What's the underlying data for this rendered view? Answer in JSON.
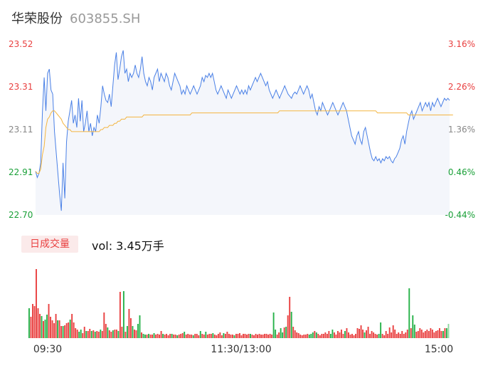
{
  "stock": {
    "name": "华荣股份",
    "code": "603855.SH"
  },
  "volume_panel": {
    "tag": "日成交量",
    "vol_label": "vol: 3.45万手"
  },
  "colors": {
    "price": "#4a80e6",
    "avg": "#f3b541",
    "up": "#e94040",
    "down": "#27b24a",
    "flat": "#8fd6a0",
    "axis_up": "#e94040",
    "axis_down": "#1aa038",
    "axis_mid": "#888888"
  },
  "chart_data": {
    "type": "line",
    "price_axis": {
      "ylim": [
        22.7,
        23.52
      ],
      "left_ticks": [
        "23.52",
        "23.31",
        "23.11",
        "22.91",
        "22.70"
      ],
      "right_ticks": [
        "3.16%",
        "2.26%",
        "1.36%",
        "0.46%",
        "-0.44%"
      ]
    },
    "x_axis": {
      "range": [
        0,
        240
      ],
      "ticks": [
        {
          "label": "09:30",
          "x": 0
        },
        {
          "label": "11:30/13:00",
          "x": 120
        },
        {
          "label": "15:00",
          "x": 240
        }
      ]
    },
    "series": [
      {
        "role": "price",
        "values": [
          22.91,
          22.88,
          22.9,
          22.95,
          23.2,
          23.36,
          23.2,
          23.38,
          23.4,
          23.3,
          23.28,
          23.1,
          23.0,
          22.9,
          22.8,
          22.72,
          22.95,
          22.78,
          23.05,
          23.15,
          23.2,
          23.25,
          23.14,
          23.18,
          23.12,
          23.26,
          23.15,
          23.25,
          23.1,
          23.14,
          23.2,
          23.1,
          23.14,
          23.08,
          23.12,
          23.1,
          23.18,
          23.14,
          23.22,
          23.32,
          23.28,
          23.25,
          23.24,
          23.28,
          23.22,
          23.32,
          23.42,
          23.48,
          23.35,
          23.4,
          23.46,
          23.49,
          23.38,
          23.4,
          23.34,
          23.38,
          23.36,
          23.38,
          23.42,
          23.38,
          23.36,
          23.4,
          23.46,
          23.38,
          23.34,
          23.32,
          23.36,
          23.34,
          23.3,
          23.36,
          23.38,
          23.4,
          23.34,
          23.38,
          23.36,
          23.34,
          23.38,
          23.36,
          23.32,
          23.3,
          23.34,
          23.38,
          23.36,
          23.34,
          23.32,
          23.28,
          23.3,
          23.28,
          23.32,
          23.3,
          23.28,
          23.3,
          23.32,
          23.3,
          23.28,
          23.3,
          23.32,
          23.36,
          23.34,
          23.37,
          23.36,
          23.38,
          23.36,
          23.38,
          23.34,
          23.3,
          23.28,
          23.3,
          23.32,
          23.3,
          23.28,
          23.26,
          23.3,
          23.28,
          23.26,
          23.28,
          23.3,
          23.32,
          23.3,
          23.28,
          23.3,
          23.28,
          23.3,
          23.28,
          23.32,
          23.3,
          23.32,
          23.34,
          23.36,
          23.34,
          23.36,
          23.38,
          23.36,
          23.34,
          23.32,
          23.34,
          23.3,
          23.28,
          23.26,
          23.28,
          23.3,
          23.28,
          23.26,
          23.28,
          23.3,
          23.32,
          23.3,
          23.28,
          23.27,
          23.26,
          23.28,
          23.29,
          23.28,
          23.3,
          23.32,
          23.3,
          23.28,
          23.3,
          23.32,
          23.3,
          23.26,
          23.28,
          23.24,
          23.2,
          23.18,
          23.22,
          23.2,
          23.24,
          23.22,
          23.2,
          23.18,
          23.2,
          23.22,
          23.24,
          23.22,
          23.2,
          23.18,
          23.2,
          23.22,
          23.24,
          23.22,
          23.2,
          23.16,
          23.12,
          23.08,
          23.06,
          23.04,
          23.08,
          23.1,
          23.06,
          23.04,
          23.1,
          23.12,
          23.08,
          23.04,
          23.0,
          22.97,
          22.96,
          22.98,
          22.96,
          22.97,
          22.95,
          22.97,
          22.96,
          22.98,
          22.97,
          22.98,
          22.96,
          22.95,
          22.97,
          22.98,
          23.0,
          23.02,
          23.06,
          23.08,
          23.04,
          23.1,
          23.14,
          23.18,
          23.2,
          23.16,
          23.18,
          23.2,
          23.22,
          23.24,
          23.2,
          23.22,
          23.24,
          23.22,
          23.24,
          23.2,
          23.24,
          23.22,
          23.24,
          23.26,
          23.24,
          23.22,
          23.24,
          23.26,
          23.25,
          23.26,
          23.25
        ]
      },
      {
        "role": "avg",
        "values": [
          22.91,
          22.9,
          22.9,
          22.92,
          22.99,
          23.03,
          23.12,
          23.16,
          23.17,
          23.19,
          23.2,
          23.2,
          23.19,
          23.18,
          23.17,
          23.16,
          23.14,
          23.13,
          23.12,
          23.11,
          23.11,
          23.1,
          23.1,
          23.1,
          23.1,
          23.1,
          23.1,
          23.1,
          23.1,
          23.1,
          23.1,
          23.1,
          23.1,
          23.1,
          23.1,
          23.1,
          23.1,
          23.1,
          23.11,
          23.11,
          23.12,
          23.12,
          23.12,
          23.13,
          23.13,
          23.13,
          23.14,
          23.14,
          23.15,
          23.15,
          23.16,
          23.16,
          23.16,
          23.17,
          23.17,
          23.17,
          23.17,
          23.17,
          23.17,
          23.17,
          23.17,
          23.17,
          23.17,
          23.18,
          23.18,
          23.18,
          23.18,
          23.18,
          23.18,
          23.18,
          23.18,
          23.18,
          23.18,
          23.18,
          23.18,
          23.18,
          23.18,
          23.18,
          23.18,
          23.18,
          23.18,
          23.18,
          23.18,
          23.18,
          23.18,
          23.18,
          23.18,
          23.18,
          23.18,
          23.18,
          23.18,
          23.19,
          23.19,
          23.19,
          23.19,
          23.19,
          23.19,
          23.19,
          23.19,
          23.19,
          23.19,
          23.19,
          23.19,
          23.19,
          23.19,
          23.19,
          23.19,
          23.19,
          23.19,
          23.19,
          23.19,
          23.19,
          23.19,
          23.19,
          23.19,
          23.19,
          23.19,
          23.19,
          23.19,
          23.19,
          23.19,
          23.19,
          23.19,
          23.19,
          23.19,
          23.19,
          23.19,
          23.19,
          23.19,
          23.19,
          23.19,
          23.19,
          23.19,
          23.19,
          23.19,
          23.19,
          23.19,
          23.19,
          23.19,
          23.19,
          23.19,
          23.19,
          23.2,
          23.2,
          23.2,
          23.2,
          23.2,
          23.2,
          23.2,
          23.2,
          23.2,
          23.2,
          23.2,
          23.2,
          23.2,
          23.2,
          23.2,
          23.2,
          23.2,
          23.2,
          23.2,
          23.2,
          23.2,
          23.2,
          23.2,
          23.2,
          23.2,
          23.2,
          23.2,
          23.2,
          23.2,
          23.2,
          23.2,
          23.2,
          23.2,
          23.2,
          23.2,
          23.2,
          23.2,
          23.2,
          23.2,
          23.2,
          23.2,
          23.2,
          23.2,
          23.2,
          23.2,
          23.2,
          23.2,
          23.2,
          23.2,
          23.2,
          23.2,
          23.2,
          23.2,
          23.2,
          23.2,
          23.2,
          23.2,
          23.19,
          23.19,
          23.19,
          23.19,
          23.19,
          23.19,
          23.19,
          23.19,
          23.19,
          23.19,
          23.19,
          23.19,
          23.19,
          23.19,
          23.19,
          23.19,
          23.19,
          23.19,
          23.18,
          23.18,
          23.18,
          23.18,
          23.18,
          23.18,
          23.18,
          23.18,
          23.18,
          23.18,
          23.18,
          23.18,
          23.18,
          23.18,
          23.18,
          23.18,
          23.18,
          23.18,
          23.18,
          23.18,
          23.18,
          23.18,
          23.18,
          23.18,
          23.18,
          23.18,
          23.18
        ]
      }
    ],
    "volume_bars": [
      [
        42,
        "down"
      ],
      [
        30,
        "up"
      ],
      [
        48,
        "up"
      ],
      [
        45,
        "up"
      ],
      [
        97,
        "up"
      ],
      [
        42,
        "up"
      ],
      [
        34,
        "up"
      ],
      [
        31,
        "down"
      ],
      [
        24,
        "up"
      ],
      [
        26,
        "down"
      ],
      [
        33,
        "down"
      ],
      [
        48,
        "up"
      ],
      [
        30,
        "up"
      ],
      [
        25,
        "up"
      ],
      [
        21,
        "up"
      ],
      [
        34,
        "up"
      ],
      [
        25,
        "down"
      ],
      [
        25,
        "up"
      ],
      [
        17,
        "up"
      ],
      [
        17,
        "down"
      ],
      [
        18,
        "up"
      ],
      [
        21,
        "up"
      ],
      [
        22,
        "up"
      ],
      [
        26,
        "down"
      ],
      [
        34,
        "up"
      ],
      [
        22,
        "up"
      ],
      [
        14,
        "up"
      ],
      [
        12,
        "up"
      ],
      [
        9,
        "down"
      ],
      [
        12,
        "down"
      ],
      [
        7,
        "up"
      ],
      [
        16,
        "up"
      ],
      [
        10,
        "down"
      ],
      [
        10,
        "up"
      ],
      [
        13,
        "up"
      ],
      [
        10,
        "down"
      ],
      [
        11,
        "up"
      ],
      [
        9,
        "down"
      ],
      [
        10,
        "up"
      ],
      [
        9,
        "up"
      ],
      [
        12,
        "down"
      ],
      [
        10,
        "up"
      ],
      [
        36,
        "up"
      ],
      [
        20,
        "up"
      ],
      [
        15,
        "down"
      ],
      [
        11,
        "up"
      ],
      [
        9,
        "up"
      ],
      [
        11,
        "down"
      ],
      [
        12,
        "up"
      ],
      [
        12,
        "up"
      ],
      [
        10,
        "down"
      ],
      [
        65,
        "up"
      ],
      [
        16,
        "up"
      ],
      [
        66,
        "down"
      ],
      [
        9,
        "up"
      ],
      [
        17,
        "down"
      ],
      [
        41,
        "up"
      ],
      [
        28,
        "up"
      ],
      [
        17,
        "down"
      ],
      [
        12,
        "up"
      ],
      [
        11,
        "up"
      ],
      [
        20,
        "down"
      ],
      [
        32,
        "down"
      ],
      [
        8,
        "up"
      ],
      [
        6,
        "down"
      ],
      [
        5,
        "down"
      ],
      [
        5,
        "up"
      ],
      [
        6,
        "down"
      ],
      [
        5,
        "up"
      ],
      [
        5,
        "up"
      ],
      [
        7,
        "down"
      ],
      [
        5,
        "up"
      ],
      [
        6,
        "up"
      ],
      [
        5,
        "up"
      ],
      [
        10,
        "up"
      ],
      [
        6,
        "down"
      ],
      [
        5,
        "up"
      ],
      [
        6,
        "up"
      ],
      [
        4,
        "up"
      ],
      [
        6,
        "up"
      ],
      [
        6,
        "down"
      ],
      [
        5,
        "up"
      ],
      [
        5,
        "up"
      ],
      [
        4,
        "down"
      ],
      [
        5,
        "up"
      ],
      [
        6,
        "up"
      ],
      [
        7,
        "up"
      ],
      [
        9,
        "down"
      ],
      [
        5,
        "up"
      ],
      [
        6,
        "up"
      ],
      [
        5,
        "up"
      ],
      [
        5,
        "up"
      ],
      [
        4,
        "down"
      ],
      [
        6,
        "up"
      ],
      [
        6,
        "up"
      ],
      [
        4,
        "up"
      ],
      [
        10,
        "down"
      ],
      [
        6,
        "up"
      ],
      [
        5,
        "up"
      ],
      [
        9,
        "down"
      ],
      [
        5,
        "up"
      ],
      [
        6,
        "up"
      ],
      [
        6,
        "up"
      ],
      [
        7,
        "down"
      ],
      [
        5,
        "up"
      ],
      [
        4,
        "up"
      ],
      [
        6,
        "up"
      ],
      [
        8,
        "up"
      ],
      [
        4,
        "up"
      ],
      [
        7,
        "down"
      ],
      [
        6,
        "up"
      ],
      [
        9,
        "up"
      ],
      [
        6,
        "up"
      ],
      [
        5,
        "up"
      ],
      [
        5,
        "up"
      ],
      [
        4,
        "down"
      ],
      [
        6,
        "up"
      ],
      [
        6,
        "up"
      ],
      [
        7,
        "up"
      ],
      [
        4,
        "up"
      ],
      [
        6,
        "up"
      ],
      [
        6,
        "up"
      ],
      [
        5,
        "up"
      ],
      [
        6,
        "up"
      ],
      [
        6,
        "down"
      ],
      [
        5,
        "up"
      ],
      [
        4,
        "up"
      ],
      [
        6,
        "up"
      ],
      [
        5,
        "up"
      ],
      [
        6,
        "up"
      ],
      [
        5,
        "up"
      ],
      [
        5,
        "up"
      ],
      [
        6,
        "up"
      ],
      [
        6,
        "up"
      ],
      [
        5,
        "up"
      ],
      [
        6,
        "up"
      ],
      [
        5,
        "up"
      ],
      [
        36,
        "down"
      ],
      [
        12,
        "down"
      ],
      [
        5,
        "up"
      ],
      [
        8,
        "up"
      ],
      [
        14,
        "down"
      ],
      [
        8,
        "down"
      ],
      [
        15,
        "up"
      ],
      [
        16,
        "down"
      ],
      [
        32,
        "up"
      ],
      [
        58,
        "up"
      ],
      [
        37,
        "down"
      ],
      [
        16,
        "up"
      ],
      [
        11,
        "up"
      ],
      [
        8,
        "up"
      ],
      [
        7,
        "up"
      ],
      [
        5,
        "up"
      ],
      [
        4,
        "up"
      ],
      [
        5,
        "up"
      ],
      [
        5,
        "up"
      ],
      [
        6,
        "up"
      ],
      [
        5,
        "down"
      ],
      [
        6,
        "down"
      ],
      [
        8,
        "down"
      ],
      [
        10,
        "up"
      ],
      [
        8,
        "down"
      ],
      [
        6,
        "up"
      ],
      [
        4,
        "up"
      ],
      [
        6,
        "up"
      ],
      [
        6,
        "up"
      ],
      [
        8,
        "up"
      ],
      [
        6,
        "up"
      ],
      [
        10,
        "up"
      ],
      [
        6,
        "down"
      ],
      [
        12,
        "down"
      ],
      [
        8,
        "up"
      ],
      [
        5,
        "up"
      ],
      [
        10,
        "up"
      ],
      [
        8,
        "up"
      ],
      [
        12,
        "up"
      ],
      [
        6,
        "up"
      ],
      [
        10,
        "down"
      ],
      [
        14,
        "up"
      ],
      [
        8,
        "up"
      ],
      [
        5,
        "up"
      ],
      [
        6,
        "up"
      ],
      [
        4,
        "up"
      ],
      [
        6,
        "up"
      ],
      [
        14,
        "up"
      ],
      [
        13,
        "up"
      ],
      [
        18,
        "up"
      ],
      [
        12,
        "up"
      ],
      [
        8,
        "down"
      ],
      [
        11,
        "up"
      ],
      [
        16,
        "up"
      ],
      [
        6,
        "up"
      ],
      [
        10,
        "up"
      ],
      [
        8,
        "up"
      ],
      [
        6,
        "up"
      ],
      [
        5,
        "up"
      ],
      [
        6,
        "down"
      ],
      [
        22,
        "down"
      ],
      [
        6,
        "up"
      ],
      [
        4,
        "up"
      ],
      [
        10,
        "up"
      ],
      [
        6,
        "up"
      ],
      [
        15,
        "up"
      ],
      [
        8,
        "up"
      ],
      [
        18,
        "up"
      ],
      [
        12,
        "up"
      ],
      [
        6,
        "up"
      ],
      [
        8,
        "up"
      ],
      [
        6,
        "up"
      ],
      [
        10,
        "up"
      ],
      [
        6,
        "up"
      ],
      [
        8,
        "up"
      ],
      [
        12,
        "up"
      ],
      [
        70,
        "down"
      ],
      [
        14,
        "up"
      ],
      [
        32,
        "down"
      ],
      [
        19,
        "down"
      ],
      [
        9,
        "up"
      ],
      [
        10,
        "up"
      ],
      [
        14,
        "up"
      ],
      [
        12,
        "up"
      ],
      [
        8,
        "up"
      ],
      [
        10,
        "up"
      ],
      [
        12,
        "up"
      ],
      [
        10,
        "up"
      ],
      [
        14,
        "up"
      ],
      [
        12,
        "up"
      ],
      [
        8,
        "up"
      ],
      [
        10,
        "up"
      ],
      [
        11,
        "up"
      ],
      [
        14,
        "up"
      ],
      [
        10,
        "up"
      ],
      [
        10,
        "down"
      ],
      [
        14,
        "up"
      ],
      [
        14,
        "down"
      ],
      [
        20,
        "flat"
      ]
    ]
  }
}
